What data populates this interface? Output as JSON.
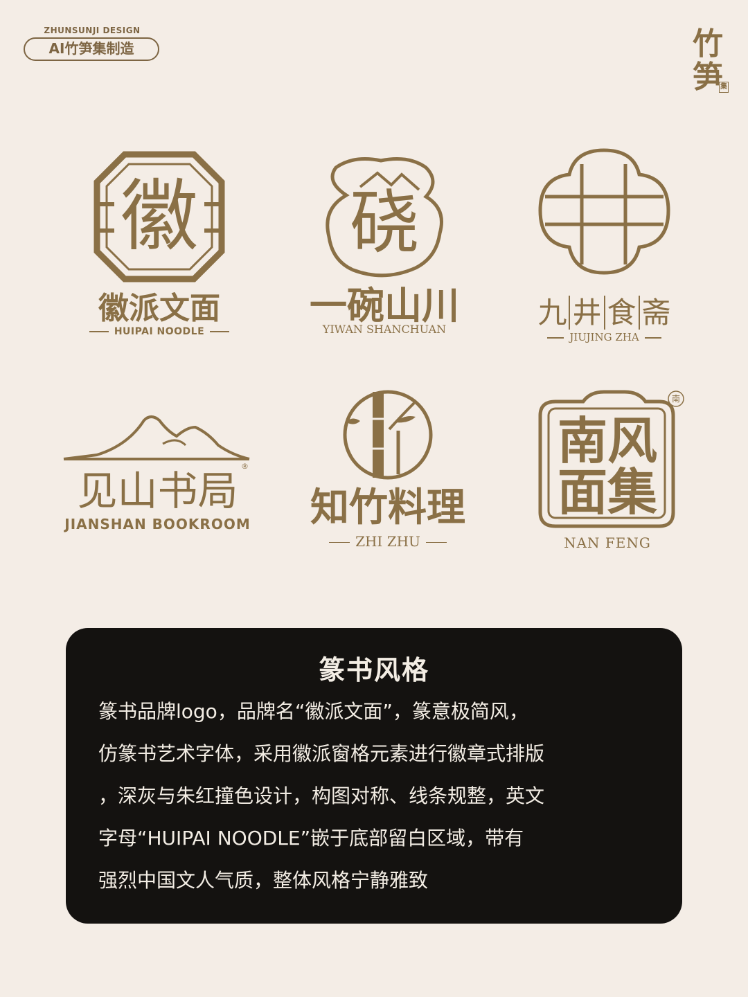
{
  "header": {
    "studio_en": "ZHUNSUNJI DESIGN",
    "studio_badge": "AI竹笋集制造",
    "corner_mark_top": "竹",
    "corner_mark_bottom": "笋",
    "corner_mark_tiny": "集"
  },
  "logos": [
    {
      "mark_char": "徽",
      "name": "徽派文面",
      "en": "HUIPAI NOODLE"
    },
    {
      "mark_chars": "硗",
      "name": "一碗山川",
      "en": "YIWAN SHANCHUAN"
    },
    {
      "mark_char": "井",
      "name_parts": [
        "九",
        "井",
        "食",
        "斋"
      ],
      "en": "JIUJING ZHA"
    },
    {
      "name": "见山书局",
      "en": "JIANSHAN BOOKROOM",
      "reg": "®"
    },
    {
      "mark_char": "竹",
      "name": "知竹料理",
      "en": "ZHI ZHU"
    },
    {
      "mark_chars": [
        "南",
        "风",
        "面",
        "集"
      ],
      "seal": "南",
      "en": "NAN FENG"
    }
  ],
  "panel": {
    "title": "篆书风格",
    "lines": [
      "篆书品牌logo，品牌名“徽派文面”，篆意极简风，",
      "仿篆书艺术字体，采用徽派窗格元素进行徽章式排版",
      "，深灰与朱红撞色设计，构图对称、线条规整，英文",
      "字母“HUIPAI NOODLE”嵌于底部留白区域，带有",
      "强烈中国文人气质，整体风格宁静雅致"
    ]
  },
  "colors": {
    "background": "#f4ede6",
    "gold": "#8a7046",
    "panel": "#141210",
    "panel_text": "#f3ede4"
  }
}
